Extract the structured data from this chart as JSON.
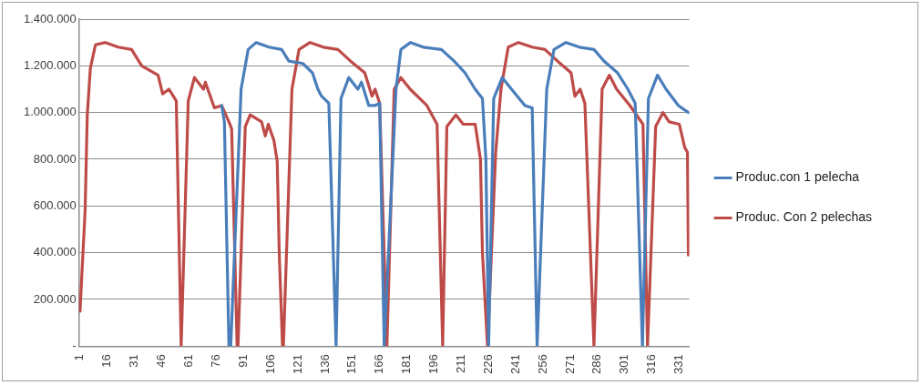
{
  "chart_data": {
    "type": "line",
    "xlim": [
      0.5,
      336.5
    ],
    "xticks": [
      1,
      16,
      31,
      46,
      61,
      76,
      91,
      106,
      121,
      136,
      151,
      166,
      181,
      196,
      211,
      226,
      241,
      256,
      271,
      286,
      301,
      316,
      331
    ],
    "ylim": [
      0,
      1400000
    ],
    "yticks": [
      {
        "value": 0,
        "label": "-"
      },
      {
        "value": 200000,
        "label": "200.000"
      },
      {
        "value": 400000,
        "label": "400.000"
      },
      {
        "value": 600000,
        "label": "600.000"
      },
      {
        "value": 800000,
        "label": "800.000"
      },
      {
        "value": 1000000,
        "label": "1.000.000"
      },
      {
        "value": 1200000,
        "label": "1.200.000"
      },
      {
        "value": 1400000,
        "label": "1.400.000"
      }
    ],
    "grid": "y",
    "legend": "right",
    "marker": "none",
    "line_style": "solid",
    "series": [
      {
        "name": "Produc.con 1 pelecha",
        "color": "#4a7ebb",
        "x": [
          79,
          80.5,
          83,
          84,
          89.7,
          93.6,
          98,
          105,
          112,
          116,
          123.7,
          129,
          132,
          134,
          138,
          142,
          144.7,
          149,
          154,
          156,
          160,
          163.5,
          166,
          168.5,
          175,
          177.7,
          183,
          190,
          200,
          207,
          213,
          218.6,
          222.6,
          224.5,
          226,
          228.8,
          233.5,
          238.6,
          246,
          250,
          252.7,
          258,
          262,
          268.6,
          276,
          284,
          289.6,
          297,
          302.7,
          306.7,
          310.7,
          314,
          319,
          323.7,
          330.5,
          336
        ],
        "values": [
          1030000,
          960000,
          0,
          0,
          1100000,
          1270000,
          1300000,
          1280000,
          1270000,
          1220000,
          1210000,
          1170000,
          1100000,
          1070000,
          1040000,
          0,
          1060000,
          1150000,
          1100000,
          1130000,
          1030000,
          1030000,
          1040000,
          0,
          1100000,
          1270000,
          1300000,
          1280000,
          1270000,
          1220000,
          1170000,
          1100000,
          1060000,
          800000,
          0,
          1060000,
          1150000,
          1100000,
          1030000,
          1020000,
          0,
          1100000,
          1270000,
          1300000,
          1280000,
          1270000,
          1220000,
          1170000,
          1100000,
          1040000,
          0,
          1060000,
          1160000,
          1100000,
          1030000,
          1000000
        ]
      },
      {
        "name": "Produc. Con 2 pelechas",
        "color": "#be4b48",
        "x": [
          1,
          3.8,
          5,
          6.7,
          9.5,
          15,
          22,
          29.4,
          35,
          44,
          46.5,
          50,
          54,
          56.7,
          60.6,
          64,
          69,
          70,
          75,
          79,
          83,
          84.5,
          87.5,
          88,
          92,
          94.7,
          101,
          103,
          104.7,
          107.8,
          109.6,
          110.7,
          112.5,
          113,
          117.7,
          121.6,
          127.7,
          135,
          143,
          150,
          157.8,
          161.8,
          163.5,
          166,
          170,
          174,
          177.7,
          182.8,
          192,
          197.6,
          200.7,
          203,
          208,
          212,
          218.6,
          221.5,
          222.6,
          225.4,
          229.9,
          232.8,
          236.8,
          242.5,
          250,
          257,
          264,
          271.4,
          273.5,
          276.4,
          279,
          284,
          288.5,
          292.5,
          296.5,
          303.8,
          311,
          313.5,
          318,
          322,
          325.4,
          331,
          334,
          335.5,
          336
        ],
        "values": [
          150000,
          580000,
          990000,
          1190000,
          1290000,
          1300000,
          1280000,
          1270000,
          1200000,
          1160000,
          1080000,
          1100000,
          1050000,
          0,
          1050000,
          1150000,
          1100000,
          1130000,
          1020000,
          1030000,
          960000,
          930000,
          0,
          0,
          940000,
          990000,
          960000,
          900000,
          950000,
          880000,
          790000,
          400000,
          0,
          0,
          1100000,
          1270000,
          1300000,
          1280000,
          1270000,
          1220000,
          1170000,
          1070000,
          1100000,
          1040000,
          0,
          1100000,
          1150000,
          1100000,
          1030000,
          950000,
          0,
          940000,
          990000,
          950000,
          950000,
          800000,
          400000,
          0,
          830000,
          1100000,
          1280000,
          1300000,
          1280000,
          1270000,
          1220000,
          1170000,
          1070000,
          1100000,
          1040000,
          0,
          1100000,
          1160000,
          1100000,
          1030000,
          950000,
          0,
          940000,
          1000000,
          960000,
          950000,
          850000,
          830000,
          390000
        ]
      }
    ]
  }
}
